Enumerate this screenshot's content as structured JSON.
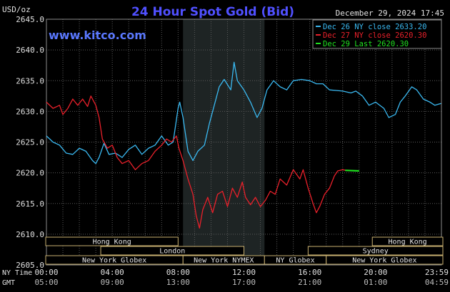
{
  "header": {
    "units": "USD/oz",
    "title": "24 Hour Spot Gold (Bid)",
    "website": "www.kitco.com",
    "timestamp": "December 29, 2024 17:45"
  },
  "colors": {
    "background": "#000000",
    "plot_bg": "#000000",
    "nymex_shade": "#1e2424",
    "grid": "#5a5a5a",
    "title": "#5050ff",
    "website": "#5a78ff",
    "dec26": "#3ab8f0",
    "dec27": "#e8202a",
    "dec29": "#20e020",
    "axis_text": "#e0e0e0",
    "band_text": "#e6e6e6",
    "band_border": "#c8b070"
  },
  "chart_data": {
    "type": "line",
    "title": "24 Hour Spot Gold (Bid)",
    "ylabel": "USD/oz",
    "ylim": [
      2605.0,
      2645.0
    ],
    "xlim_hours": [
      0,
      24
    ],
    "yticks": [
      "2605.0",
      "2610.0",
      "2615.0",
      "2620.0",
      "2625.0",
      "2630.0",
      "2635.0",
      "2640.0",
      "2645.0"
    ],
    "grid": true,
    "legend_position": "top-right",
    "nymex_session_hours": [
      8.3,
      13.25
    ],
    "xaxis_rows": [
      {
        "label": "NY Time",
        "ticks": [
          "00:00",
          "04:00",
          "08:00",
          "12:00",
          "16:00",
          "20:00",
          "23:59"
        ]
      },
      {
        "label": "GMT",
        "ticks": [
          "05:00",
          "09:00",
          "13:00",
          "17:00",
          "21:00",
          "01:00",
          "04:59"
        ]
      }
    ],
    "series": [
      {
        "name": "Dec 26 NY close 2633.20",
        "color_key": "dec26",
        "points": [
          [
            0,
            2626.0
          ],
          [
            0.4,
            2625.0
          ],
          [
            0.8,
            2624.5
          ],
          [
            1.2,
            2623.2
          ],
          [
            1.6,
            2623.0
          ],
          [
            2.0,
            2624.0
          ],
          [
            2.4,
            2623.5
          ],
          [
            2.8,
            2622.0
          ],
          [
            3.0,
            2621.5
          ],
          [
            3.2,
            2622.5
          ],
          [
            3.5,
            2624.8
          ],
          [
            3.8,
            2623.0
          ],
          [
            4.2,
            2623.2
          ],
          [
            4.6,
            2622.5
          ],
          [
            5.0,
            2623.8
          ],
          [
            5.4,
            2624.5
          ],
          [
            5.8,
            2623.0
          ],
          [
            6.2,
            2624.0
          ],
          [
            6.6,
            2624.5
          ],
          [
            7.0,
            2626.0
          ],
          [
            7.4,
            2624.5
          ],
          [
            7.7,
            2625.0
          ],
          [
            8.0,
            2630.5
          ],
          [
            8.1,
            2631.5
          ],
          [
            8.3,
            2629.0
          ],
          [
            8.6,
            2623.5
          ],
          [
            8.9,
            2622.0
          ],
          [
            9.2,
            2623.5
          ],
          [
            9.6,
            2624.5
          ],
          [
            9.9,
            2628.0
          ],
          [
            10.2,
            2631.0
          ],
          [
            10.5,
            2634.0
          ],
          [
            10.8,
            2635.2
          ],
          [
            11.2,
            2633.5
          ],
          [
            11.4,
            2638.0
          ],
          [
            11.6,
            2635.0
          ],
          [
            12.0,
            2633.5
          ],
          [
            12.4,
            2631.5
          ],
          [
            12.8,
            2629.0
          ],
          [
            13.1,
            2630.5
          ],
          [
            13.4,
            2633.5
          ],
          [
            13.8,
            2635.0
          ],
          [
            14.2,
            2634.0
          ],
          [
            14.6,
            2633.5
          ],
          [
            15.0,
            2635.0
          ],
          [
            15.5,
            2635.2
          ],
          [
            16.0,
            2635.0
          ],
          [
            16.4,
            2634.5
          ],
          [
            16.8,
            2634.5
          ],
          [
            17.2,
            2633.5
          ],
          [
            17.6,
            2633.4
          ],
          [
            18.0,
            2633.3
          ],
          [
            18.5,
            2633.0
          ],
          [
            18.8,
            2633.3
          ],
          [
            19.2,
            2632.5
          ],
          [
            19.6,
            2631.0
          ],
          [
            20.0,
            2631.5
          ],
          [
            20.5,
            2630.5
          ],
          [
            20.8,
            2629.0
          ],
          [
            21.2,
            2629.5
          ],
          [
            21.5,
            2631.5
          ],
          [
            21.8,
            2632.5
          ],
          [
            22.2,
            2634.0
          ],
          [
            22.5,
            2633.5
          ],
          [
            22.9,
            2632.0
          ],
          [
            23.3,
            2631.5
          ],
          [
            23.6,
            2631.0
          ],
          [
            23.98,
            2631.3
          ]
        ]
      },
      {
        "name": "Dec 27 NY close 2620.30",
        "color_key": "dec27",
        "points": [
          [
            0,
            2631.5
          ],
          [
            0.4,
            2630.5
          ],
          [
            0.8,
            2631.0
          ],
          [
            1.0,
            2629.5
          ],
          [
            1.3,
            2630.5
          ],
          [
            1.6,
            2632.0
          ],
          [
            1.9,
            2631.0
          ],
          [
            2.2,
            2632.0
          ],
          [
            2.5,
            2630.8
          ],
          [
            2.7,
            2632.5
          ],
          [
            3.0,
            2631.0
          ],
          [
            3.2,
            2629.0
          ],
          [
            3.4,
            2625.5
          ],
          [
            3.7,
            2624.0
          ],
          [
            4.0,
            2624.5
          ],
          [
            4.3,
            2622.5
          ],
          [
            4.6,
            2621.5
          ],
          [
            5.0,
            2622.0
          ],
          [
            5.4,
            2620.5
          ],
          [
            5.8,
            2621.5
          ],
          [
            6.2,
            2622.0
          ],
          [
            6.6,
            2623.5
          ],
          [
            7.0,
            2624.5
          ],
          [
            7.3,
            2625.5
          ],
          [
            7.6,
            2625.0
          ],
          [
            7.9,
            2626.0
          ],
          [
            8.05,
            2624.0
          ],
          [
            8.3,
            2622.0
          ],
          [
            8.6,
            2619.0
          ],
          [
            8.9,
            2616.5
          ],
          [
            9.1,
            2613.0
          ],
          [
            9.3,
            2611.0
          ],
          [
            9.5,
            2614.0
          ],
          [
            9.8,
            2616.0
          ],
          [
            10.1,
            2613.5
          ],
          [
            10.4,
            2616.5
          ],
          [
            10.7,
            2617.0
          ],
          [
            11.0,
            2614.5
          ],
          [
            11.3,
            2617.5
          ],
          [
            11.6,
            2616.0
          ],
          [
            11.9,
            2618.5
          ],
          [
            12.1,
            2616.0
          ],
          [
            12.4,
            2614.8
          ],
          [
            12.7,
            2616.0
          ],
          [
            13.0,
            2614.5
          ],
          [
            13.3,
            2615.5
          ],
          [
            13.6,
            2617.0
          ],
          [
            13.9,
            2616.5
          ],
          [
            14.2,
            2619.0
          ],
          [
            14.6,
            2618.0
          ],
          [
            15.0,
            2620.5
          ],
          [
            15.4,
            2619.0
          ],
          [
            15.6,
            2620.5
          ],
          [
            15.9,
            2617.5
          ],
          [
            16.2,
            2615.0
          ],
          [
            16.4,
            2613.5
          ],
          [
            16.6,
            2614.5
          ],
          [
            16.9,
            2616.5
          ],
          [
            17.2,
            2617.5
          ],
          [
            17.5,
            2619.5
          ],
          [
            17.7,
            2620.3
          ],
          [
            18.0,
            2620.5
          ],
          [
            18.2,
            2620.4
          ]
        ]
      },
      {
        "name": "Dec 29 Last 2620.30",
        "color_key": "dec29",
        "points": [
          [
            18.15,
            2620.4
          ],
          [
            19.0,
            2620.3
          ]
        ]
      }
    ]
  },
  "sessions": [
    {
      "name": "Hong Kong",
      "row": 0,
      "start": -0.5,
      "end": 8.0
    },
    {
      "name": "Hong Kong",
      "row": 0,
      "start": 19.8,
      "end": 24.5
    },
    {
      "name": "London",
      "row": 1,
      "start": 3.3,
      "end": 12.0
    },
    {
      "name": "Sydney",
      "row": 1,
      "start": 15.9,
      "end": 24.5
    },
    {
      "name": "New York Globex",
      "row": 2,
      "start": -0.5,
      "end": 8.3
    },
    {
      "name": "New York NYMEX",
      "row": 2,
      "start": 8.3,
      "end": 13.25
    },
    {
      "name": "NY Globex",
      "row": 2,
      "start": 13.25,
      "end": 17.0
    },
    {
      "name": "New York Globex",
      "row": 2,
      "start": 17.0,
      "end": 24.5
    }
  ]
}
